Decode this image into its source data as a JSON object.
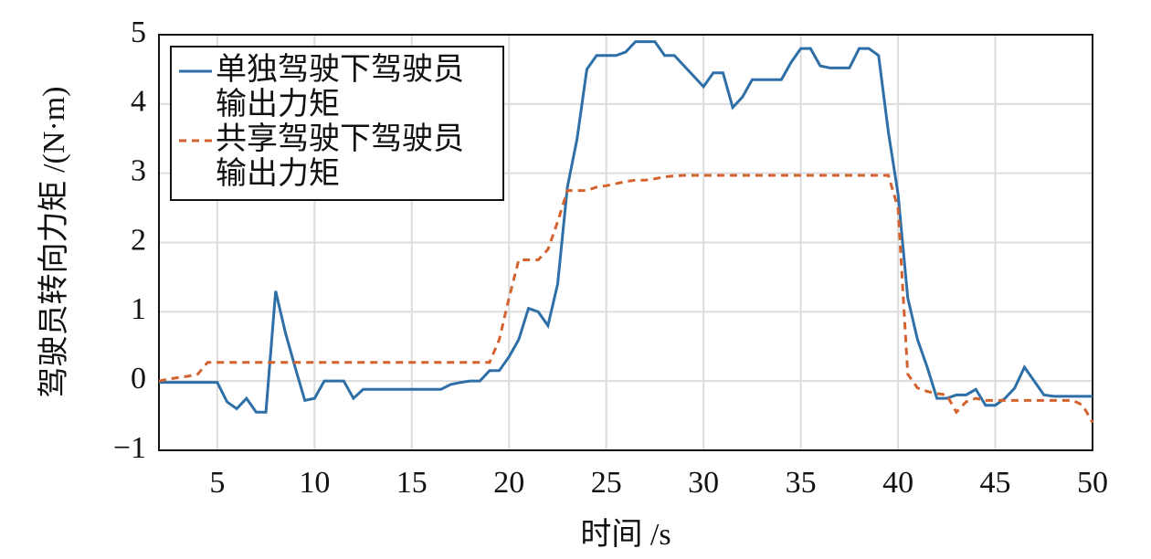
{
  "chart_data": {
    "type": "line",
    "xlabel": "时间 /s",
    "ylabel": "驾驶员转向力矩 /(N·m)",
    "x": [
      2,
      2.5,
      3,
      3.5,
      4,
      4.5,
      5,
      5.5,
      6,
      6.5,
      7,
      7.5,
      8,
      8.5,
      9,
      9.5,
      10,
      10.5,
      11,
      11.5,
      12,
      12.5,
      13,
      13.5,
      14,
      14.5,
      15,
      15.5,
      16,
      16.5,
      17,
      17.5,
      18,
      18.5,
      19,
      19.5,
      20,
      20.5,
      21,
      21.5,
      22,
      22.5,
      23,
      23.5,
      24,
      24.5,
      25,
      25.5,
      26,
      26.5,
      27,
      27.5,
      28,
      28.5,
      29,
      29.5,
      30,
      30.5,
      31,
      31.5,
      32,
      32.5,
      33,
      33.5,
      34,
      34.5,
      35,
      35.5,
      36,
      36.5,
      37,
      37.5,
      38,
      38.5,
      39,
      39.5,
      40,
      40.5,
      41,
      41.5,
      42,
      42.5,
      43,
      43.5,
      44,
      44.5,
      45,
      45.5,
      46,
      46.5,
      47,
      47.5,
      48,
      48.5,
      49,
      49.5,
      50
    ],
    "series": [
      {
        "name": "单独驾驶下驾驶员输出力矩",
        "color": "#2e6fa8",
        "dash": "solid",
        "values": [
          -0.02,
          -0.02,
          -0.02,
          -0.02,
          -0.02,
          -0.02,
          -0.02,
          -0.3,
          -0.4,
          -0.25,
          -0.45,
          -0.45,
          1.3,
          0.7,
          0.2,
          -0.28,
          -0.25,
          0,
          0,
          0,
          -0.25,
          -0.12,
          -0.12,
          -0.12,
          -0.12,
          -0.12,
          -0.12,
          -0.12,
          -0.12,
          -0.12,
          -0.05,
          -0.02,
          0,
          0,
          0.15,
          0.15,
          0.35,
          0.6,
          1.05,
          1.0,
          0.8,
          1.4,
          2.8,
          3.5,
          4.5,
          4.7,
          4.7,
          4.7,
          4.75,
          4.9,
          4.9,
          4.9,
          4.7,
          4.7,
          4.55,
          4.4,
          4.25,
          4.45,
          4.45,
          3.95,
          4.1,
          4.35,
          4.35,
          4.35,
          4.35,
          4.6,
          4.8,
          4.8,
          4.55,
          4.52,
          4.52,
          4.52,
          4.8,
          4.8,
          4.7,
          3.6,
          2.7,
          1.2,
          0.6,
          0.2,
          -0.25,
          -0.25,
          -0.2,
          -0.2,
          -0.12,
          -0.35,
          -0.35,
          -0.25,
          -0.1,
          0.2,
          0,
          -0.2,
          -0.22,
          -0.22,
          -0.22,
          -0.22,
          -0.22
        ]
      },
      {
        "name": "共享驾驶下驾驶员输出力矩",
        "color": "#d4622e",
        "dash": "dashed",
        "values": [
          0,
          0.03,
          0.05,
          0.07,
          0.1,
          0.27,
          0.27,
          0.27,
          0.27,
          0.27,
          0.27,
          0.27,
          0.27,
          0.27,
          0.27,
          0.27,
          0.27,
          0.27,
          0.27,
          0.27,
          0.27,
          0.27,
          0.27,
          0.27,
          0.27,
          0.27,
          0.27,
          0.27,
          0.27,
          0.27,
          0.27,
          0.27,
          0.27,
          0.27,
          0.27,
          0.6,
          1.2,
          1.75,
          1.75,
          1.75,
          1.9,
          2.3,
          2.75,
          2.75,
          2.75,
          2.8,
          2.82,
          2.85,
          2.88,
          2.9,
          2.9,
          2.92,
          2.95,
          2.96,
          2.97,
          2.97,
          2.97,
          2.97,
          2.97,
          2.97,
          2.97,
          2.97,
          2.97,
          2.97,
          2.97,
          2.97,
          2.97,
          2.97,
          2.97,
          2.97,
          2.97,
          2.97,
          2.97,
          2.97,
          2.97,
          2.97,
          2.5,
          0.1,
          -0.1,
          -0.15,
          -0.18,
          -0.2,
          -0.45,
          -0.3,
          -0.25,
          -0.28,
          -0.28,
          -0.28,
          -0.28,
          -0.28,
          -0.28,
          -0.28,
          -0.28,
          -0.28,
          -0.28,
          -0.35,
          -0.6
        ]
      }
    ],
    "xlim": [
      2,
      50
    ],
    "ylim": [
      -1,
      5
    ],
    "xticks": [
      5,
      10,
      15,
      20,
      25,
      30,
      35,
      40,
      45,
      50
    ],
    "yticks": [
      {
        "value": -1,
        "label": "−1"
      },
      0,
      1,
      2,
      3,
      4,
      5
    ],
    "grid": true,
    "legend": "upper left"
  }
}
